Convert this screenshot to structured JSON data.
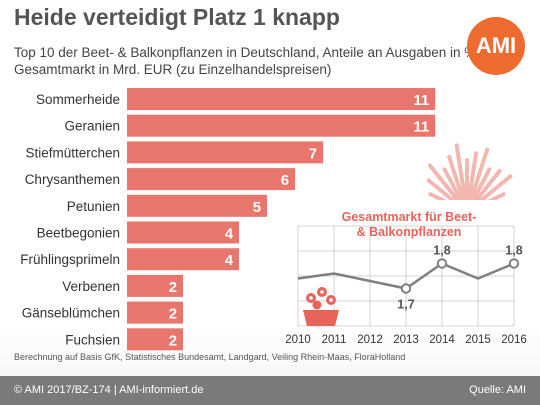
{
  "header": {
    "title": "Heide verteidigt Platz 1 knapp",
    "subtitle": "Top 10 der Beet- & Balkonpflanzen in Deutschland, Anteile an Ausgaben in %, Gesamtmarkt in Mrd. EUR (zu Einzelhandelspreisen)",
    "logo": "AMI"
  },
  "note": "Berechnung auf Basis GfK, Statistisches Bundesamt, Landgard, Veiling Rhein-Maas, FloraHolland",
  "footer": {
    "left": "© AMI 2017/BZ-174 | AMI-informiert.de",
    "right": "Quelle: AMI"
  },
  "colors": {
    "bar": "#e8766c",
    "line": "#7f7f7f",
    "accent": "#e8635a",
    "logo": "#ee6b2f",
    "footer": "#7a7a7a"
  },
  "icons": [
    "heather-plant-icon",
    "flower-pot-icon"
  ],
  "chart_data": [
    {
      "type": "bar",
      "orientation": "horizontal",
      "categories": [
        "Sommerheide",
        "Geranien",
        "Stiefmütterchen",
        "Chrysanthemen",
        "Petunien",
        "Beetbegonien",
        "Frühlingsprimeln",
        "Verbenen",
        "Gänseblümchen",
        "Fuchsien"
      ],
      "values": [
        11,
        11,
        7,
        6,
        5,
        4,
        4,
        2,
        2,
        2
      ],
      "xlim": [
        0,
        11.6
      ]
    },
    {
      "type": "line",
      "title": "Gesamtmarkt für Beet- & Balkonpflanzen",
      "x": [
        "2010",
        "2011",
        "2012",
        "2013",
        "2014",
        "2015",
        "2016"
      ],
      "values": [
        1.74,
        1.76,
        1.73,
        1.7,
        1.8,
        1.74,
        1.8
      ],
      "point_labels": [
        {
          "x": "2013",
          "label": "1,7"
        },
        {
          "x": "2014",
          "label": "1,8"
        },
        {
          "x": "2016",
          "label": "1,8"
        }
      ],
      "ylim": [
        1.55,
        1.95
      ],
      "grid": true
    }
  ]
}
